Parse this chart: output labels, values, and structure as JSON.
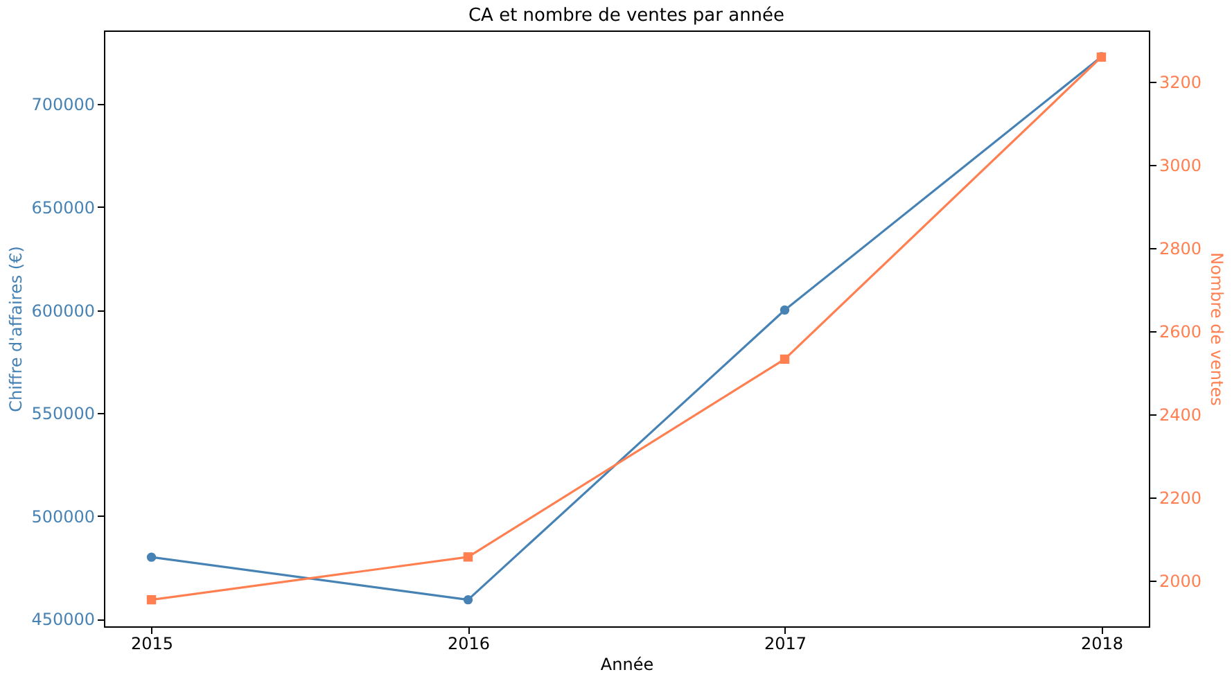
{
  "chart_data": {
    "type": "line",
    "title": "CA et nombre de ventes par année",
    "xlabel": "Année",
    "ylabel": "Chiffre d'affaires (€)",
    "y2label": "Nombre de ventes",
    "x": [
      2015,
      2016,
      2017,
      2018
    ],
    "xlim": [
      2014.85,
      2018.15
    ],
    "xticks": [
      2015,
      2016,
      2017,
      2018
    ],
    "ylim": [
      446400,
      735800
    ],
    "yticks": [
      450000,
      500000,
      550000,
      600000,
      650000,
      700000
    ],
    "y2lim": [
      1890,
      3324
    ],
    "y2ticks": [
      2000,
      2200,
      2400,
      2600,
      2800,
      3000,
      3200
    ],
    "series": [
      {
        "name": null,
        "color": "#4682b4",
        "marker": "circle",
        "values": [
          480000,
          459300,
          600000,
          723000
        ]
      },
      {
        "name": null,
        "color": "#ff7f50",
        "marker": "square",
        "axis": "y2",
        "values": [
          1954,
          2057,
          2533,
          3260
        ]
      }
    ],
    "grid": false
  }
}
